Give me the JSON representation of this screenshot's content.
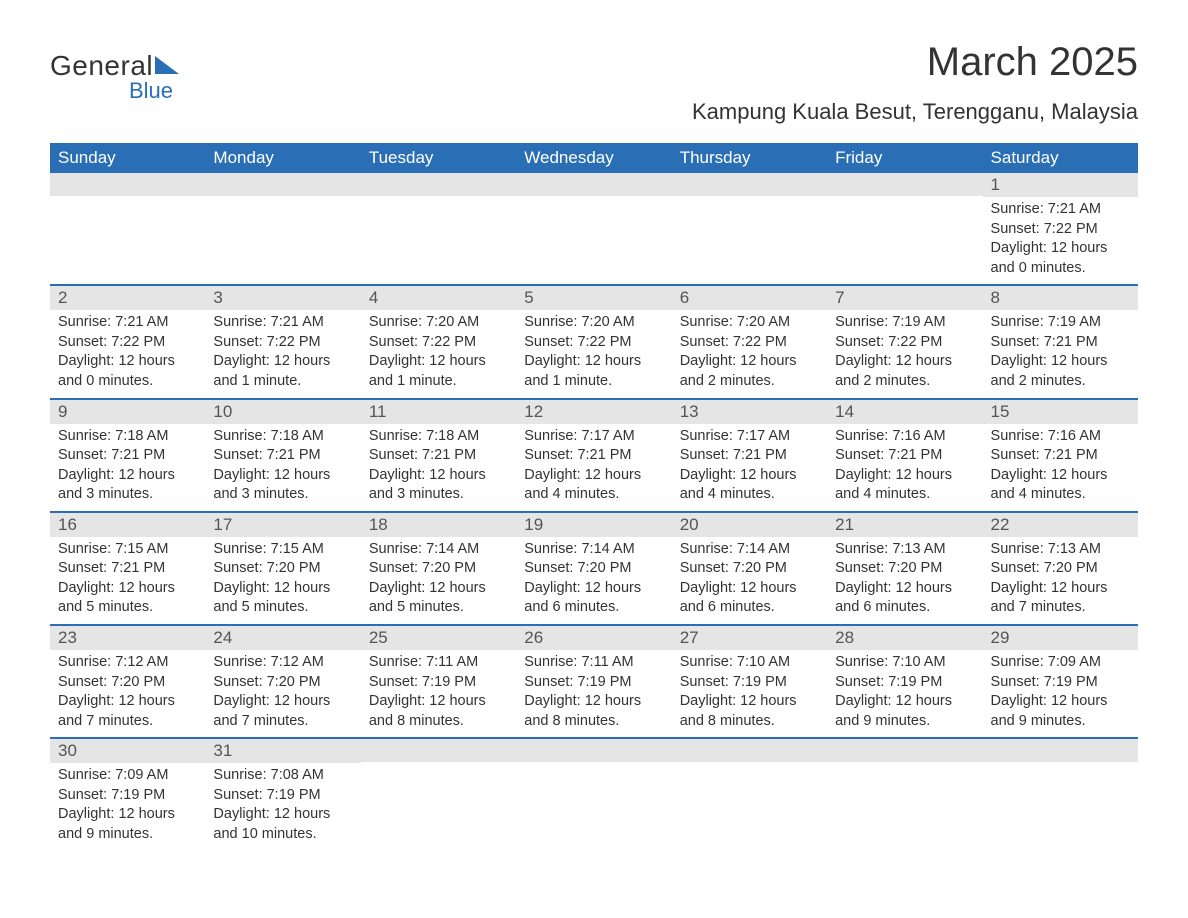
{
  "logo": {
    "text1": "General",
    "text2": "Blue"
  },
  "title": "March 2025",
  "location": "Kampung Kuala Besut, Terengganu, Malaysia",
  "weekdays": [
    "Sunday",
    "Monday",
    "Tuesday",
    "Wednesday",
    "Thursday",
    "Friday",
    "Saturday"
  ],
  "colors": {
    "header_bg": "#2a6fb5",
    "header_text": "#ffffff",
    "daynum_bg": "#e5e5e5",
    "row_border": "#2a6fb5",
    "text": "#333333"
  },
  "weeks": [
    [
      {
        "day": "",
        "sunrise": "",
        "sunset": "",
        "daylight": ""
      },
      {
        "day": "",
        "sunrise": "",
        "sunset": "",
        "daylight": ""
      },
      {
        "day": "",
        "sunrise": "",
        "sunset": "",
        "daylight": ""
      },
      {
        "day": "",
        "sunrise": "",
        "sunset": "",
        "daylight": ""
      },
      {
        "day": "",
        "sunrise": "",
        "sunset": "",
        "daylight": ""
      },
      {
        "day": "",
        "sunrise": "",
        "sunset": "",
        "daylight": ""
      },
      {
        "day": "1",
        "sunrise": "Sunrise: 7:21 AM",
        "sunset": "Sunset: 7:22 PM",
        "daylight": "Daylight: 12 hours and 0 minutes."
      }
    ],
    [
      {
        "day": "2",
        "sunrise": "Sunrise: 7:21 AM",
        "sunset": "Sunset: 7:22 PM",
        "daylight": "Daylight: 12 hours and 0 minutes."
      },
      {
        "day": "3",
        "sunrise": "Sunrise: 7:21 AM",
        "sunset": "Sunset: 7:22 PM",
        "daylight": "Daylight: 12 hours and 1 minute."
      },
      {
        "day": "4",
        "sunrise": "Sunrise: 7:20 AM",
        "sunset": "Sunset: 7:22 PM",
        "daylight": "Daylight: 12 hours and 1 minute."
      },
      {
        "day": "5",
        "sunrise": "Sunrise: 7:20 AM",
        "sunset": "Sunset: 7:22 PM",
        "daylight": "Daylight: 12 hours and 1 minute."
      },
      {
        "day": "6",
        "sunrise": "Sunrise: 7:20 AM",
        "sunset": "Sunset: 7:22 PM",
        "daylight": "Daylight: 12 hours and 2 minutes."
      },
      {
        "day": "7",
        "sunrise": "Sunrise: 7:19 AM",
        "sunset": "Sunset: 7:22 PM",
        "daylight": "Daylight: 12 hours and 2 minutes."
      },
      {
        "day": "8",
        "sunrise": "Sunrise: 7:19 AM",
        "sunset": "Sunset: 7:21 PM",
        "daylight": "Daylight: 12 hours and 2 minutes."
      }
    ],
    [
      {
        "day": "9",
        "sunrise": "Sunrise: 7:18 AM",
        "sunset": "Sunset: 7:21 PM",
        "daylight": "Daylight: 12 hours and 3 minutes."
      },
      {
        "day": "10",
        "sunrise": "Sunrise: 7:18 AM",
        "sunset": "Sunset: 7:21 PM",
        "daylight": "Daylight: 12 hours and 3 minutes."
      },
      {
        "day": "11",
        "sunrise": "Sunrise: 7:18 AM",
        "sunset": "Sunset: 7:21 PM",
        "daylight": "Daylight: 12 hours and 3 minutes."
      },
      {
        "day": "12",
        "sunrise": "Sunrise: 7:17 AM",
        "sunset": "Sunset: 7:21 PM",
        "daylight": "Daylight: 12 hours and 4 minutes."
      },
      {
        "day": "13",
        "sunrise": "Sunrise: 7:17 AM",
        "sunset": "Sunset: 7:21 PM",
        "daylight": "Daylight: 12 hours and 4 minutes."
      },
      {
        "day": "14",
        "sunrise": "Sunrise: 7:16 AM",
        "sunset": "Sunset: 7:21 PM",
        "daylight": "Daylight: 12 hours and 4 minutes."
      },
      {
        "day": "15",
        "sunrise": "Sunrise: 7:16 AM",
        "sunset": "Sunset: 7:21 PM",
        "daylight": "Daylight: 12 hours and 4 minutes."
      }
    ],
    [
      {
        "day": "16",
        "sunrise": "Sunrise: 7:15 AM",
        "sunset": "Sunset: 7:21 PM",
        "daylight": "Daylight: 12 hours and 5 minutes."
      },
      {
        "day": "17",
        "sunrise": "Sunrise: 7:15 AM",
        "sunset": "Sunset: 7:20 PM",
        "daylight": "Daylight: 12 hours and 5 minutes."
      },
      {
        "day": "18",
        "sunrise": "Sunrise: 7:14 AM",
        "sunset": "Sunset: 7:20 PM",
        "daylight": "Daylight: 12 hours and 5 minutes."
      },
      {
        "day": "19",
        "sunrise": "Sunrise: 7:14 AM",
        "sunset": "Sunset: 7:20 PM",
        "daylight": "Daylight: 12 hours and 6 minutes."
      },
      {
        "day": "20",
        "sunrise": "Sunrise: 7:14 AM",
        "sunset": "Sunset: 7:20 PM",
        "daylight": "Daylight: 12 hours and 6 minutes."
      },
      {
        "day": "21",
        "sunrise": "Sunrise: 7:13 AM",
        "sunset": "Sunset: 7:20 PM",
        "daylight": "Daylight: 12 hours and 6 minutes."
      },
      {
        "day": "22",
        "sunrise": "Sunrise: 7:13 AM",
        "sunset": "Sunset: 7:20 PM",
        "daylight": "Daylight: 12 hours and 7 minutes."
      }
    ],
    [
      {
        "day": "23",
        "sunrise": "Sunrise: 7:12 AM",
        "sunset": "Sunset: 7:20 PM",
        "daylight": "Daylight: 12 hours and 7 minutes."
      },
      {
        "day": "24",
        "sunrise": "Sunrise: 7:12 AM",
        "sunset": "Sunset: 7:20 PM",
        "daylight": "Daylight: 12 hours and 7 minutes."
      },
      {
        "day": "25",
        "sunrise": "Sunrise: 7:11 AM",
        "sunset": "Sunset: 7:19 PM",
        "daylight": "Daylight: 12 hours and 8 minutes."
      },
      {
        "day": "26",
        "sunrise": "Sunrise: 7:11 AM",
        "sunset": "Sunset: 7:19 PM",
        "daylight": "Daylight: 12 hours and 8 minutes."
      },
      {
        "day": "27",
        "sunrise": "Sunrise: 7:10 AM",
        "sunset": "Sunset: 7:19 PM",
        "daylight": "Daylight: 12 hours and 8 minutes."
      },
      {
        "day": "28",
        "sunrise": "Sunrise: 7:10 AM",
        "sunset": "Sunset: 7:19 PM",
        "daylight": "Daylight: 12 hours and 9 minutes."
      },
      {
        "day": "29",
        "sunrise": "Sunrise: 7:09 AM",
        "sunset": "Sunset: 7:19 PM",
        "daylight": "Daylight: 12 hours and 9 minutes."
      }
    ],
    [
      {
        "day": "30",
        "sunrise": "Sunrise: 7:09 AM",
        "sunset": "Sunset: 7:19 PM",
        "daylight": "Daylight: 12 hours and 9 minutes."
      },
      {
        "day": "31",
        "sunrise": "Sunrise: 7:08 AM",
        "sunset": "Sunset: 7:19 PM",
        "daylight": "Daylight: 12 hours and 10 minutes."
      },
      {
        "day": "",
        "sunrise": "",
        "sunset": "",
        "daylight": ""
      },
      {
        "day": "",
        "sunrise": "",
        "sunset": "",
        "daylight": ""
      },
      {
        "day": "",
        "sunrise": "",
        "sunset": "",
        "daylight": ""
      },
      {
        "day": "",
        "sunrise": "",
        "sunset": "",
        "daylight": ""
      },
      {
        "day": "",
        "sunrise": "",
        "sunset": "",
        "daylight": ""
      }
    ]
  ]
}
